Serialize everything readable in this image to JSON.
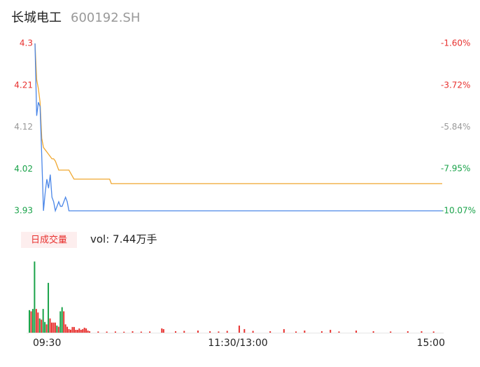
{
  "header": {
    "name": "长城电工",
    "code": "600192.SH"
  },
  "chart_data": [
    {
      "type": "line",
      "x": [
        0,
        1,
        2,
        3,
        4,
        5,
        6,
        7,
        8,
        9,
        10,
        11,
        12,
        13,
        14,
        15,
        16,
        17,
        18,
        19,
        20,
        23,
        44,
        45,
        240
      ],
      "xlim": [
        0,
        240
      ],
      "series": [
        {
          "color": "#4a86e8",
          "values": [
            4.3,
            4.14,
            4.17,
            4.16,
            4.05,
            3.93,
            3.97,
            4.0,
            3.98,
            4.01,
            3.96,
            3.95,
            3.93,
            3.94,
            3.95,
            3.94,
            3.94,
            3.95,
            3.96,
            3.95,
            3.93,
            3.93,
            3.93,
            3.93,
            3.93
          ]
        },
        {
          "color": "#f0a830",
          "values": [
            4.3,
            4.22,
            4.2,
            4.17,
            4.09,
            4.07,
            4.065,
            4.06,
            4.055,
            4.05,
            4.045,
            4.045,
            4.04,
            4.03,
            4.02,
            4.02,
            4.02,
            4.02,
            4.02,
            4.02,
            4.02,
            4.0,
            4.0,
            3.99,
            3.99
          ]
        }
      ],
      "ylim": [
        3.93,
        4.3
      ],
      "yticks": [
        4.3,
        {
          "value": 4.2075,
          "label": "4.21"
        },
        {
          "value": 4.115,
          "label": "4.12"
        },
        {
          "value": 4.0225,
          "label": "4.02"
        },
        3.93
      ],
      "ytick_colors": [
        "#e8312f",
        "#e8312f",
        "#999999",
        "#1aa34a",
        "#1aa34a"
      ],
      "y2lim": [
        -10.07,
        -1.6
      ],
      "y2ticks": [
        {
          "value": -1.6,
          "label": "-1.60%"
        },
        {
          "value": -3.72,
          "label": "-3.72%"
        },
        {
          "value": -5.84,
          "label": "-5.84%"
        },
        {
          "value": -7.95,
          "label": "-7.95%"
        },
        {
          "value": -10.07,
          "label": "-10.07%"
        }
      ],
      "grid": false
    },
    {
      "type": "bar",
      "label": "日成交量",
      "total": "vol: 7.44万手",
      "x": [
        0,
        1,
        2,
        3,
        4,
        5,
        6,
        7,
        8,
        9,
        10,
        11,
        12,
        13,
        14,
        15,
        16,
        17,
        18,
        19,
        20,
        21,
        22,
        23,
        24,
        25,
        26,
        27,
        28,
        29,
        30,
        31,
        32,
        33,
        34,
        35,
        40,
        45,
        50,
        55,
        60,
        65,
        70,
        77,
        78,
        85,
        90,
        98,
        105,
        110,
        115,
        122,
        125,
        130,
        140,
        148,
        155,
        160,
        170,
        175,
        180,
        190,
        200,
        210,
        220,
        228,
        235
      ],
      "values": [
        1900,
        1800,
        2000,
        6000,
        2000,
        1700,
        1200,
        1100,
        2000,
        900,
        700,
        4200,
        1200,
        850,
        850,
        850,
        600,
        500,
        1800,
        2150,
        1800,
        700,
        500,
        300,
        250,
        480,
        480,
        240,
        240,
        360,
        240,
        300,
        420,
        360,
        180,
        120,
        100,
        90,
        100,
        80,
        120,
        90,
        100,
        360,
        300,
        120,
        150,
        180,
        120,
        100,
        150,
        600,
        300,
        150,
        120,
        300,
        100,
        180,
        120,
        240,
        100,
        180,
        120,
        100,
        120,
        120,
        100
      ],
      "colors": [
        "#1aa34a",
        "#e8312f",
        "#1aa34a",
        "#1aa34a",
        "#e8312f",
        "#e8312f",
        "#1aa34a",
        "#e8312f",
        "#1aa34a",
        "#1aa34a",
        "#e8312f",
        "#1aa34a",
        "#e8312f",
        "#e8312f",
        "#e8312f",
        "#e8312f",
        "#1aa34a",
        "#e8312f",
        "#1aa34a",
        "#1aa34a",
        "#e8312f",
        "#e8312f",
        "#e8312f",
        "#e8312f",
        "#e8312f",
        "#e8312f",
        "#e8312f",
        "#e8312f",
        "#e8312f",
        "#e8312f",
        "#e8312f",
        "#e8312f",
        "#e8312f",
        "#e8312f",
        "#e8312f",
        "#e8312f",
        "#e8312f",
        "#e8312f",
        "#e8312f",
        "#e8312f",
        "#e8312f",
        "#e8312f",
        "#e8312f",
        "#e8312f",
        "#e8312f",
        "#e8312f",
        "#e8312f",
        "#e8312f",
        "#e8312f",
        "#e8312f",
        "#e8312f",
        "#e8312f",
        "#e8312f",
        "#e8312f",
        "#e8312f",
        "#e8312f",
        "#e8312f",
        "#e8312f",
        "#e8312f",
        "#e8312f",
        "#e8312f",
        "#e8312f",
        "#e8312f",
        "#e8312f",
        "#e8312f",
        "#e8312f",
        "#e8312f"
      ],
      "xlim": [
        0,
        240
      ],
      "xticks": [
        {
          "value": 0,
          "label": "09:30"
        },
        {
          "value": 120,
          "label": "11:30/13:00"
        },
        {
          "value": 240,
          "label": "15:00"
        }
      ],
      "ylim": [
        0,
        6200
      ]
    }
  ]
}
